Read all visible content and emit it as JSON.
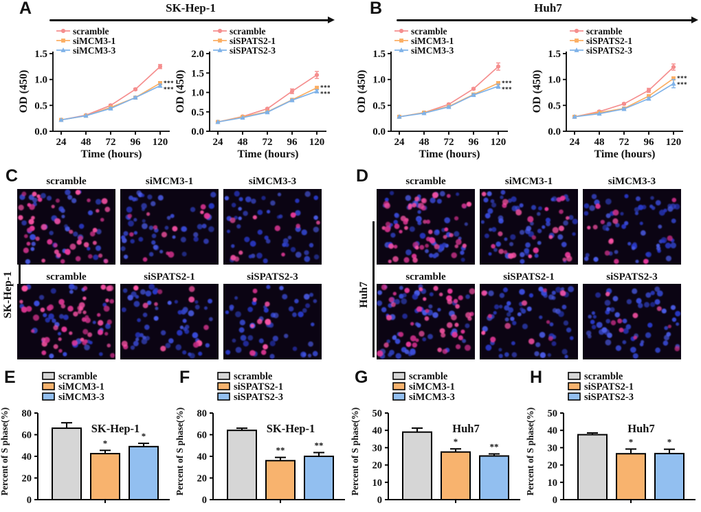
{
  "colors": {
    "scramble_line": "#F58E8E",
    "si1_line": "#FBAE63",
    "si3_line": "#7FB2E8",
    "bar_gray": "#D6D6D6",
    "bar_orange": "#F8B36E",
    "bar_blue": "#92BFF0",
    "micro_blue": "#3A4CDC",
    "micro_pink": "#EC3F9B",
    "axis": "#000000"
  },
  "panels": {
    "A": {
      "letter": "A",
      "title": "SK-Hep-1"
    },
    "B": {
      "letter": "B",
      "title": "Huh7"
    },
    "C": {
      "letter": "C",
      "side_label": "SK-Hep-1"
    },
    "D": {
      "letter": "D",
      "side_label": "Huh7"
    },
    "E": {
      "letter": "E"
    },
    "F": {
      "letter": "F"
    },
    "G": {
      "letter": "G"
    },
    "H": {
      "letter": "H"
    }
  },
  "micro": {
    "C": {
      "rows": [
        {
          "tiles": [
            {
              "label": "scramble",
              "pink": 46,
              "blue": 38,
              "seed": 11
            },
            {
              "label": "siMCM3-1",
              "pink": 12,
              "blue": 52,
              "seed": 12
            },
            {
              "label": "siMCM3-3",
              "pink": 10,
              "blue": 50,
              "seed": 13
            }
          ]
        },
        {
          "tiles": [
            {
              "label": "scramble",
              "pink": 52,
              "blue": 34,
              "seed": 14
            },
            {
              "label": "siSPATS2-1",
              "pink": 12,
              "blue": 54,
              "seed": 15
            },
            {
              "label": "siSPATS2-3",
              "pink": 9,
              "blue": 48,
              "seed": 16
            }
          ]
        }
      ]
    },
    "D": {
      "rows": [
        {
          "tiles": [
            {
              "label": "scramble",
              "pink": 48,
              "blue": 58,
              "seed": 21
            },
            {
              "label": "siMCM3-1",
              "pink": 26,
              "blue": 58,
              "seed": 22
            },
            {
              "label": "siMCM3-3",
              "pink": 13,
              "blue": 58,
              "seed": 23
            }
          ]
        },
        {
          "tiles": [
            {
              "label": "scramble",
              "pink": 44,
              "blue": 55,
              "seed": 24
            },
            {
              "label": "siSPATS2-1",
              "pink": 11,
              "blue": 62,
              "seed": 25
            },
            {
              "label": "siSPATS2-3",
              "pink": 9,
              "blue": 58,
              "seed": 26
            }
          ]
        }
      ]
    }
  },
  "chart_data": [
    {
      "type": "line",
      "panel": "A",
      "cell_line": "SK-Hep-1",
      "xlabel": "Time (hours)",
      "ylabel": "OD (450)",
      "x": [
        24,
        48,
        72,
        96,
        120
      ],
      "ylim": [
        0,
        1.5
      ],
      "yticks": [
        "0.0",
        "0.5",
        "1.0",
        "1.5"
      ],
      "series": [
        {
          "name": "scramble",
          "marker": "circle",
          "color": "#F58E8E",
          "values": [
            0.22,
            0.31,
            0.5,
            0.81,
            1.25
          ],
          "errors": [
            0.01,
            0.01,
            0.02,
            0.02,
            0.04
          ]
        },
        {
          "name": "siMCM3-1",
          "marker": "square",
          "color": "#FBAE63",
          "values": [
            0.22,
            0.3,
            0.46,
            0.65,
            0.93
          ],
          "errors": [
            0.01,
            0.01,
            0.02,
            0.02,
            0.03
          ]
        },
        {
          "name": "siMCM3-3",
          "marker": "triangle",
          "color": "#7FB2E8",
          "values": [
            0.22,
            0.3,
            0.44,
            0.65,
            0.88
          ],
          "errors": [
            0.01,
            0.01,
            0.02,
            0.02,
            0.03
          ]
        }
      ],
      "sig": [
        "***",
        "***"
      ]
    },
    {
      "type": "line",
      "panel": "A",
      "cell_line": "SK-Hep-1",
      "xlabel": "Time (hours)",
      "ylabel": "OD (450)",
      "x": [
        24,
        48,
        72,
        96,
        120
      ],
      "ylim": [
        0,
        2.0
      ],
      "yticks": [
        "0.0",
        "0.5",
        "1.0",
        "1.5",
        "2.0"
      ],
      "series": [
        {
          "name": "scramble",
          "marker": "circle",
          "color": "#F58E8E",
          "values": [
            0.24,
            0.38,
            0.58,
            1.03,
            1.45
          ],
          "errors": [
            0.01,
            0.01,
            0.02,
            0.06,
            0.09
          ]
        },
        {
          "name": "siSPATS2-1",
          "marker": "square",
          "color": "#FBAE63",
          "values": [
            0.24,
            0.37,
            0.5,
            0.81,
            1.12
          ],
          "errors": [
            0.01,
            0.01,
            0.02,
            0.02,
            0.03
          ]
        },
        {
          "name": "siSPATS2-3",
          "marker": "triangle",
          "color": "#7FB2E8",
          "values": [
            0.24,
            0.35,
            0.49,
            0.8,
            1.03
          ],
          "errors": [
            0.01,
            0.01,
            0.02,
            0.02,
            0.04
          ]
        }
      ],
      "sig": [
        "***",
        "***"
      ]
    },
    {
      "type": "line",
      "panel": "B",
      "cell_line": "Huh7",
      "xlabel": "Time (hours)",
      "ylabel": "OD (450)",
      "x": [
        24,
        48,
        72,
        96,
        120
      ],
      "ylim": [
        0,
        1.5
      ],
      "yticks": [
        "0.0",
        "0.5",
        "1.0",
        "1.5"
      ],
      "series": [
        {
          "name": "scramble",
          "marker": "circle",
          "color": "#F58E8E",
          "values": [
            0.28,
            0.36,
            0.52,
            0.82,
            1.25
          ],
          "errors": [
            0.01,
            0.01,
            0.02,
            0.02,
            0.07
          ]
        },
        {
          "name": "siMCM3-1",
          "marker": "square",
          "color": "#FBAE63",
          "values": [
            0.28,
            0.36,
            0.48,
            0.71,
            0.93
          ],
          "errors": [
            0.01,
            0.01,
            0.02,
            0.02,
            0.03
          ]
        },
        {
          "name": "siMCM3-3",
          "marker": "triangle",
          "color": "#7FB2E8",
          "values": [
            0.28,
            0.35,
            0.47,
            0.7,
            0.87
          ],
          "errors": [
            0.01,
            0.01,
            0.02,
            0.02,
            0.04
          ]
        }
      ],
      "sig": [
        "***",
        "***"
      ]
    },
    {
      "type": "line",
      "panel": "B",
      "cell_line": "Huh7",
      "xlabel": "Time (hours)",
      "ylabel": "OD (450)",
      "x": [
        24,
        48,
        72,
        96,
        120
      ],
      "ylim": [
        0,
        1.5
      ],
      "yticks": [
        "0.0",
        "0.5",
        "1.0",
        "1.5"
      ],
      "series": [
        {
          "name": "scramble",
          "marker": "circle",
          "color": "#F58E8E",
          "values": [
            0.28,
            0.38,
            0.53,
            0.79,
            1.24
          ],
          "errors": [
            0.01,
            0.02,
            0.02,
            0.04,
            0.06
          ]
        },
        {
          "name": "siSPATS2-1",
          "marker": "square",
          "color": "#FBAE63",
          "values": [
            0.28,
            0.36,
            0.44,
            0.68,
            1.02
          ],
          "errors": [
            0.01,
            0.01,
            0.02,
            0.02,
            0.03
          ]
        },
        {
          "name": "siSPATS2-3",
          "marker": "triangle",
          "color": "#7FB2E8",
          "values": [
            0.28,
            0.34,
            0.43,
            0.63,
            0.92
          ],
          "errors": [
            0.01,
            0.01,
            0.02,
            0.02,
            0.08
          ]
        }
      ],
      "sig": [
        "***",
        "***"
      ]
    },
    {
      "type": "bar",
      "panel": "E",
      "title": "SK-Hep-1",
      "ylabel": "Percent of S phase(%)",
      "ylim": [
        0,
        80
      ],
      "yticks": [
        0,
        20,
        40,
        60,
        80
      ],
      "categories": [
        "scramble",
        "siMCM3-1",
        "siMCM3-3"
      ],
      "values": [
        66,
        42.5,
        49
      ],
      "errors": [
        5,
        3,
        3
      ],
      "sig": [
        "",
        "*",
        "*"
      ],
      "colors": [
        "#D6D6D6",
        "#F8B36E",
        "#92BFF0"
      ]
    },
    {
      "type": "bar",
      "panel": "F",
      "title": "SK-Hep-1",
      "ylabel": "Percent of S phase(%)",
      "ylim": [
        0,
        80
      ],
      "yticks": [
        0,
        20,
        40,
        60,
        80
      ],
      "categories": [
        "scramble",
        "siSPATS2-1",
        "siSPATS2-3"
      ],
      "values": [
        64,
        36,
        40
      ],
      "errors": [
        2,
        3,
        3.5
      ],
      "sig": [
        "",
        "**",
        "**"
      ],
      "colors": [
        "#D6D6D6",
        "#F8B36E",
        "#92BFF0"
      ]
    },
    {
      "type": "bar",
      "panel": "G",
      "title": "Huh7",
      "ylabel": "Percent of S phase(%)",
      "ylim": [
        0,
        50
      ],
      "yticks": [
        0,
        10,
        20,
        30,
        40,
        50
      ],
      "categories": [
        "scramble",
        "siMCM3-1",
        "siMCM3-3"
      ],
      "values": [
        39,
        27.5,
        25.2
      ],
      "errors": [
        2.3,
        1.8,
        1.2
      ],
      "sig": [
        "",
        "*",
        "**"
      ],
      "colors": [
        "#D6D6D6",
        "#F8B36E",
        "#92BFF0"
      ]
    },
    {
      "type": "bar",
      "panel": "H",
      "title": "Huh7",
      "ylabel": "Percent of S phase(%)",
      "ylim": [
        0,
        50
      ],
      "yticks": [
        0,
        10,
        20,
        30,
        40,
        50
      ],
      "categories": [
        "scramble",
        "siSPATS2-1",
        "siSPATS2-3"
      ],
      "values": [
        37.5,
        26.5,
        26.6
      ],
      "errors": [
        1,
        2.7,
        2.5
      ],
      "sig": [
        "",
        "*",
        "*"
      ],
      "colors": [
        "#D6D6D6",
        "#F8B36E",
        "#92BFF0"
      ]
    }
  ]
}
